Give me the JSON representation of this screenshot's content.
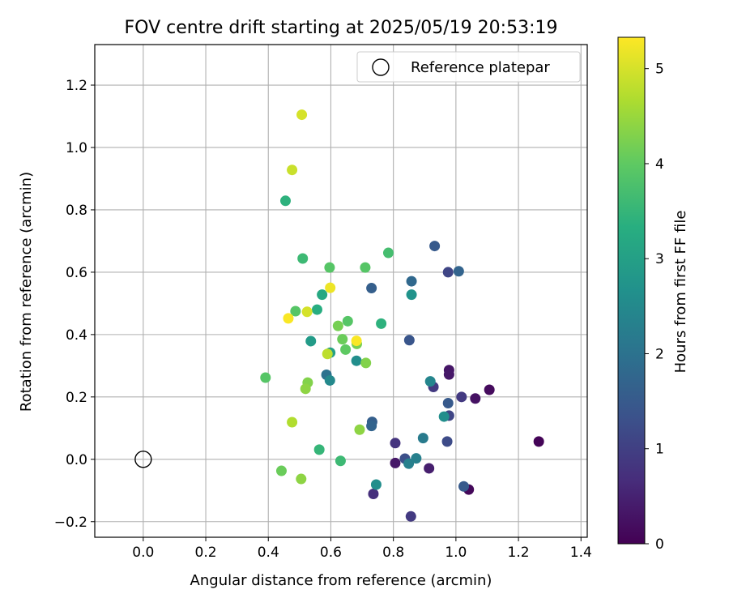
{
  "chart_data": {
    "type": "scatter",
    "title": "FOV centre drift starting at 2025/05/19 20:53:19",
    "xlabel": "Angular distance from reference (arcmin)",
    "ylabel": "Rotation from reference (arcmin)",
    "xlim": [
      -0.155,
      1.42
    ],
    "ylim": [
      -0.25,
      1.33
    ],
    "xticks": [
      0.0,
      0.2,
      0.4,
      0.6,
      0.8,
      1.0,
      1.2,
      1.4
    ],
    "xtick_labels": [
      "0.0",
      "0.2",
      "0.4",
      "0.6",
      "0.8",
      "1.0",
      "1.2",
      "1.4"
    ],
    "yticks": [
      -0.2,
      0.0,
      0.2,
      0.4,
      0.6,
      0.8,
      1.0,
      1.2
    ],
    "ytick_labels": [
      "−0.2",
      "0.0",
      "0.2",
      "0.4",
      "0.6",
      "0.8",
      "1.0",
      "1.2"
    ],
    "grid": true,
    "legend": {
      "position": "top-right",
      "entries": [
        "Reference platepar"
      ]
    },
    "reference_point": {
      "x": 0.0,
      "y": 0.0,
      "label": "Reference platepar"
    },
    "colorbar": {
      "label": "Hours from first FF file",
      "min": 0,
      "max": 5.33,
      "ticks": [
        0,
        1,
        2,
        3,
        4,
        5
      ],
      "tick_labels": [
        "0",
        "1",
        "2",
        "3",
        "4",
        "5"
      ],
      "colormap": "viridis"
    },
    "points": [
      {
        "x": 1.265,
        "y": 0.057,
        "hours": 0.05
      },
      {
        "x": 1.107,
        "y": 0.223,
        "hours": 0.15
      },
      {
        "x": 1.062,
        "y": 0.195,
        "hours": 0.25
      },
      {
        "x": 1.041,
        "y": -0.097,
        "hours": 0.1
      },
      {
        "x": 0.978,
        "y": 0.286,
        "hours": 0.3
      },
      {
        "x": 0.978,
        "y": 0.272,
        "hours": 0.35
      },
      {
        "x": 0.914,
        "y": -0.029,
        "hours": 0.45
      },
      {
        "x": 0.806,
        "y": -0.012,
        "hours": 0.35
      },
      {
        "x": 0.806,
        "y": 0.052,
        "hours": 0.8
      },
      {
        "x": 0.736,
        "y": -0.111,
        "hours": 0.7
      },
      {
        "x": 0.856,
        "y": -0.183,
        "hours": 0.9
      },
      {
        "x": 0.837,
        "y": 0.002,
        "hours": 1.3
      },
      {
        "x": 0.928,
        "y": 0.232,
        "hours": 0.9
      },
      {
        "x": 1.018,
        "y": 0.2,
        "hours": 0.9
      },
      {
        "x": 1.025,
        "y": -0.087,
        "hours": 1.5
      },
      {
        "x": 0.978,
        "y": 0.14,
        "hours": 1.1
      },
      {
        "x": 0.972,
        "y": 0.057,
        "hours": 1.2
      },
      {
        "x": 0.975,
        "y": 0.6,
        "hours": 1.1
      },
      {
        "x": 0.975,
        "y": 0.18,
        "hours": 1.5
      },
      {
        "x": 1.009,
        "y": 0.603,
        "hours": 1.7
      },
      {
        "x": 0.932,
        "y": 0.684,
        "hours": 1.5
      },
      {
        "x": 0.858,
        "y": 0.571,
        "hours": 1.8
      },
      {
        "x": 0.73,
        "y": 0.549,
        "hours": 1.6
      },
      {
        "x": 0.851,
        "y": 0.382,
        "hours": 1.4
      },
      {
        "x": 0.732,
        "y": 0.12,
        "hours": 1.6
      },
      {
        "x": 0.73,
        "y": 0.107,
        "hours": 1.7
      },
      {
        "x": 0.849,
        "y": -0.014,
        "hours": 2.3
      },
      {
        "x": 0.873,
        "y": 0.003,
        "hours": 2.3
      },
      {
        "x": 0.895,
        "y": 0.068,
        "hours": 2.2
      },
      {
        "x": 0.918,
        "y": 0.25,
        "hours": 2.4
      },
      {
        "x": 0.962,
        "y": 0.137,
        "hours": 2.6
      },
      {
        "x": 0.745,
        "y": -0.081,
        "hours": 2.6
      },
      {
        "x": 0.858,
        "y": 0.528,
        "hours": 2.7
      },
      {
        "x": 0.586,
        "y": 0.271,
        "hours": 2.0
      },
      {
        "x": 0.597,
        "y": 0.253,
        "hours": 2.5
      },
      {
        "x": 0.682,
        "y": 0.316,
        "hours": 2.6
      },
      {
        "x": 0.598,
        "y": 0.342,
        "hours": 3.0
      },
      {
        "x": 0.536,
        "y": 0.379,
        "hours": 2.9
      },
      {
        "x": 0.563,
        "y": 0.031,
        "hours": 3.5
      },
      {
        "x": 0.631,
        "y": -0.005,
        "hours": 3.6
      },
      {
        "x": 0.761,
        "y": 0.435,
        "hours": 3.4
      },
      {
        "x": 0.572,
        "y": 0.528,
        "hours": 3.2
      },
      {
        "x": 0.556,
        "y": 0.48,
        "hours": 3.3
      },
      {
        "x": 0.455,
        "y": 0.829,
        "hours": 3.4
      },
      {
        "x": 0.51,
        "y": 0.644,
        "hours": 3.6
      },
      {
        "x": 0.784,
        "y": 0.662,
        "hours": 3.7
      },
      {
        "x": 0.71,
        "y": 0.615,
        "hours": 3.9
      },
      {
        "x": 0.596,
        "y": 0.615,
        "hours": 3.9
      },
      {
        "x": 0.487,
        "y": 0.475,
        "hours": 3.9
      },
      {
        "x": 0.654,
        "y": 0.443,
        "hours": 3.9
      },
      {
        "x": 0.623,
        "y": 0.428,
        "hours": 4.2
      },
      {
        "x": 0.637,
        "y": 0.385,
        "hours": 4.1
      },
      {
        "x": 0.683,
        "y": 0.37,
        "hours": 4.2
      },
      {
        "x": 0.647,
        "y": 0.352,
        "hours": 4.0
      },
      {
        "x": 0.712,
        "y": 0.309,
        "hours": 4.3
      },
      {
        "x": 0.391,
        "y": 0.262,
        "hours": 3.9
      },
      {
        "x": 0.526,
        "y": 0.246,
        "hours": 4.3
      },
      {
        "x": 0.519,
        "y": 0.226,
        "hours": 4.4
      },
      {
        "x": 0.442,
        "y": -0.037,
        "hours": 4.1
      },
      {
        "x": 0.505,
        "y": -0.063,
        "hours": 4.4
      },
      {
        "x": 0.692,
        "y": 0.095,
        "hours": 4.4
      },
      {
        "x": 0.476,
        "y": 0.119,
        "hours": 4.7
      },
      {
        "x": 0.589,
        "y": 0.338,
        "hours": 4.8
      },
      {
        "x": 0.476,
        "y": 0.928,
        "hours": 4.9
      },
      {
        "x": 0.507,
        "y": 1.105,
        "hours": 5.0
      },
      {
        "x": 0.524,
        "y": 0.473,
        "hours": 5.0
      },
      {
        "x": 0.598,
        "y": 0.55,
        "hours": 5.2
      },
      {
        "x": 0.464,
        "y": 0.452,
        "hours": 5.3
      },
      {
        "x": 0.682,
        "y": 0.38,
        "hours": 5.3
      }
    ]
  }
}
